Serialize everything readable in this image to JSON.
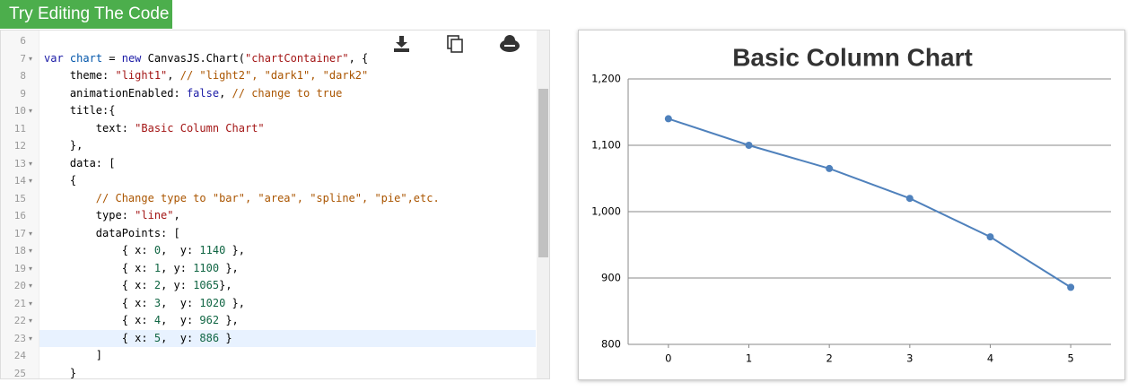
{
  "editor": {
    "button": "Try Editing The Code",
    "active_line": 23,
    "syntax_colors": {
      "plain": "#000000",
      "keyword": "#1a1aa6",
      "variable": "#0055aa",
      "string": "#a31515",
      "comment": "#aa5500",
      "number": "#116644"
    },
    "lines": [
      {
        "number": 6,
        "fold": false,
        "tokens": []
      },
      {
        "number": 7,
        "fold": true,
        "tokens": [
          [
            "var",
            "keyword"
          ],
          [
            " ",
            "plain"
          ],
          [
            "chart",
            "variable"
          ],
          [
            " = ",
            "plain"
          ],
          [
            "new",
            "keyword"
          ],
          [
            " CanvasJS.Chart(",
            "plain"
          ],
          [
            "\"chartContainer\"",
            "string"
          ],
          [
            ", {",
            "plain"
          ]
        ]
      },
      {
        "number": 8,
        "fold": false,
        "tokens": [
          [
            "    theme: ",
            "plain"
          ],
          [
            "\"light1\"",
            "string"
          ],
          [
            ", ",
            "plain"
          ],
          [
            "// \"light2\", \"dark1\", \"dark2\"",
            "comment"
          ]
        ]
      },
      {
        "number": 9,
        "fold": false,
        "tokens": [
          [
            "    animationEnabled: ",
            "plain"
          ],
          [
            "false",
            "keyword"
          ],
          [
            ", ",
            "plain"
          ],
          [
            "// change to true",
            "comment"
          ]
        ]
      },
      {
        "number": 10,
        "fold": true,
        "tokens": [
          [
            "    title:{",
            "plain"
          ]
        ]
      },
      {
        "number": 11,
        "fold": false,
        "tokens": [
          [
            "        text: ",
            "plain"
          ],
          [
            "\"Basic Column Chart\"",
            "string"
          ]
        ]
      },
      {
        "number": 12,
        "fold": false,
        "tokens": [
          [
            "    },",
            "plain"
          ]
        ]
      },
      {
        "number": 13,
        "fold": true,
        "tokens": [
          [
            "    data: [",
            "plain"
          ]
        ]
      },
      {
        "number": 14,
        "fold": true,
        "tokens": [
          [
            "    {",
            "plain"
          ]
        ]
      },
      {
        "number": 15,
        "fold": false,
        "tokens": [
          [
            "        ",
            "plain"
          ],
          [
            "// Change type to \"bar\", \"area\", \"spline\", \"pie\",etc.",
            "comment"
          ]
        ]
      },
      {
        "number": 16,
        "fold": false,
        "tokens": [
          [
            "        type: ",
            "plain"
          ],
          [
            "\"line\"",
            "string"
          ],
          [
            ",",
            "plain"
          ]
        ]
      },
      {
        "number": 17,
        "fold": true,
        "tokens": [
          [
            "        dataPoints: [",
            "plain"
          ]
        ]
      },
      {
        "number": 18,
        "fold": true,
        "tokens": [
          [
            "            { x: ",
            "plain"
          ],
          [
            "0",
            "number"
          ],
          [
            ",  y: ",
            "plain"
          ],
          [
            "1140",
            "number"
          ],
          [
            " },",
            "plain"
          ]
        ]
      },
      {
        "number": 19,
        "fold": true,
        "tokens": [
          [
            "            { x: ",
            "plain"
          ],
          [
            "1",
            "number"
          ],
          [
            ", y: ",
            "plain"
          ],
          [
            "1100",
            "number"
          ],
          [
            " },",
            "plain"
          ]
        ]
      },
      {
        "number": 20,
        "fold": true,
        "tokens": [
          [
            "            { x: ",
            "plain"
          ],
          [
            "2",
            "number"
          ],
          [
            ", y: ",
            "plain"
          ],
          [
            "1065",
            "number"
          ],
          [
            "},",
            "plain"
          ]
        ]
      },
      {
        "number": 21,
        "fold": true,
        "tokens": [
          [
            "            { x: ",
            "plain"
          ],
          [
            "3",
            "number"
          ],
          [
            ",  y: ",
            "plain"
          ],
          [
            "1020",
            "number"
          ],
          [
            " },",
            "plain"
          ]
        ]
      },
      {
        "number": 22,
        "fold": true,
        "tokens": [
          [
            "            { x: ",
            "plain"
          ],
          [
            "4",
            "number"
          ],
          [
            ",  y: ",
            "plain"
          ],
          [
            "962",
            "number"
          ],
          [
            " },",
            "plain"
          ]
        ]
      },
      {
        "number": 23,
        "fold": true,
        "tokens": [
          [
            "            { x: ",
            "plain"
          ],
          [
            "5",
            "number"
          ],
          [
            ",  y: ",
            "plain"
          ],
          [
            "886",
            "number"
          ],
          [
            " }",
            "plain"
          ]
        ]
      },
      {
        "number": 24,
        "fold": false,
        "tokens": [
          [
            "        ]",
            "plain"
          ]
        ]
      },
      {
        "number": 25,
        "fold": false,
        "tokens": [
          [
            "    }",
            "plain"
          ]
        ]
      }
    ]
  },
  "chart_data": {
    "type": "line",
    "title": "Basic Column Chart",
    "x": [
      0,
      1,
      2,
      3,
      4,
      5
    ],
    "series": [
      {
        "color": "#4f81bc",
        "values": [
          1140,
          1100,
          1065,
          1020,
          962,
          886
        ]
      }
    ],
    "xlim": [
      -0.5,
      5.5
    ],
    "xticks": [
      0,
      1,
      2,
      3,
      4,
      5
    ],
    "ylim": [
      800,
      1200
    ],
    "yticks": [
      800,
      900,
      {
        "value": 1000,
        "label": "1,000"
      },
      {
        "value": 1100,
        "label": "1,100"
      },
      {
        "value": 1200,
        "label": "1,200"
      }
    ],
    "grid": true
  }
}
